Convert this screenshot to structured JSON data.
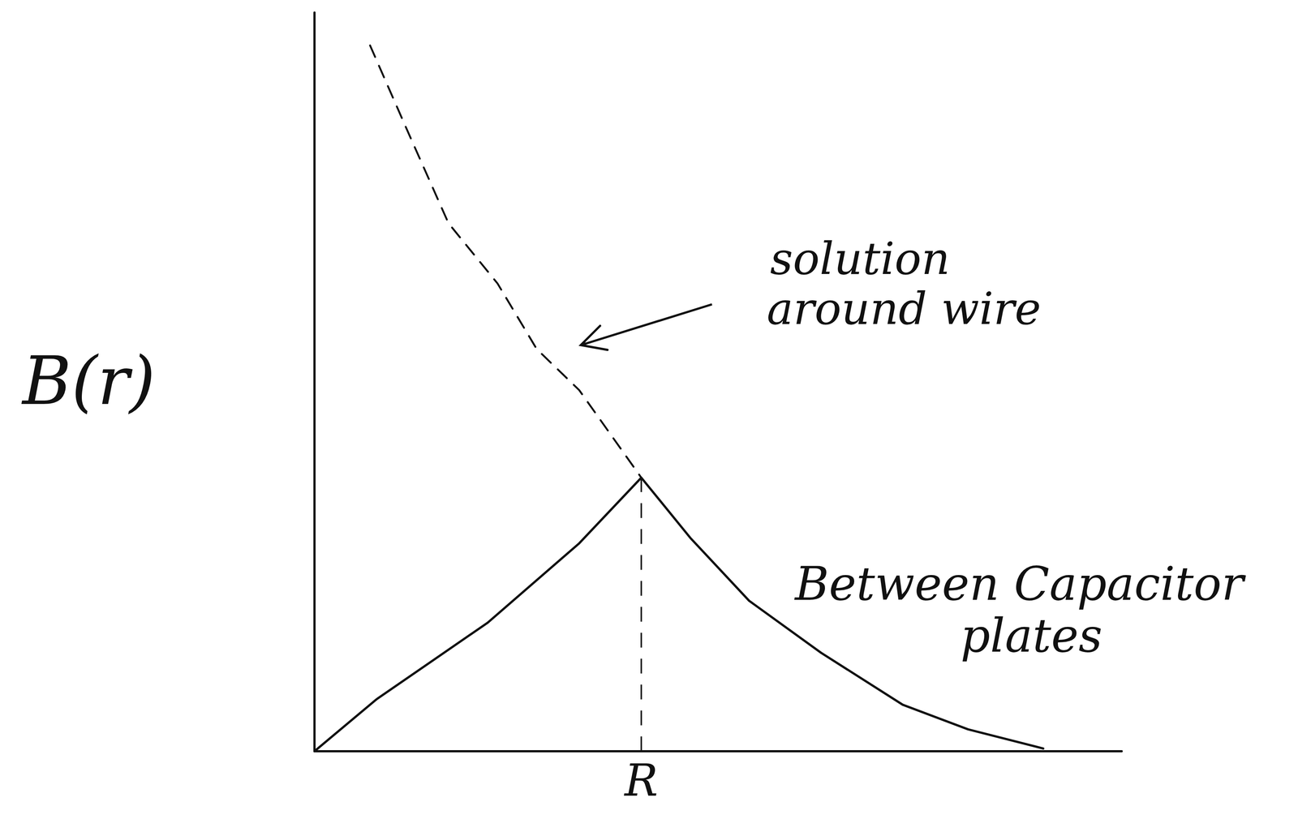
{
  "chart_data": {
    "type": "line",
    "y_label": "B(r)",
    "xlim": [
      0,
      2.47
    ],
    "ylim": [
      0,
      2.7
    ],
    "xticks": [
      {
        "value": 1,
        "label": "R"
      }
    ],
    "tick_labels": "x",
    "grid": false,
    "series": [
      {
        "name": "Between Capacitor plates",
        "color": "#111111",
        "line_style": "solid",
        "x": [
          0,
          0.19,
          0.53,
          0.81,
          1,
          1.15,
          1.33,
          1.55,
          1.8,
          2.0,
          2.23
        ],
        "values": [
          0,
          0.19,
          0.47,
          0.76,
          1,
          0.78,
          0.55,
          0.36,
          0.17,
          0.08,
          0.01
        ]
      },
      {
        "name": "solution around wire",
        "color": "#111111",
        "line_style": "dashed",
        "x": [
          0.17,
          0.28,
          0.41,
          0.56,
          0.68,
          0.81,
          1
        ],
        "values": [
          2.58,
          2.28,
          1.93,
          1.71,
          1.47,
          1.32,
          1
        ]
      }
    ]
  }
}
